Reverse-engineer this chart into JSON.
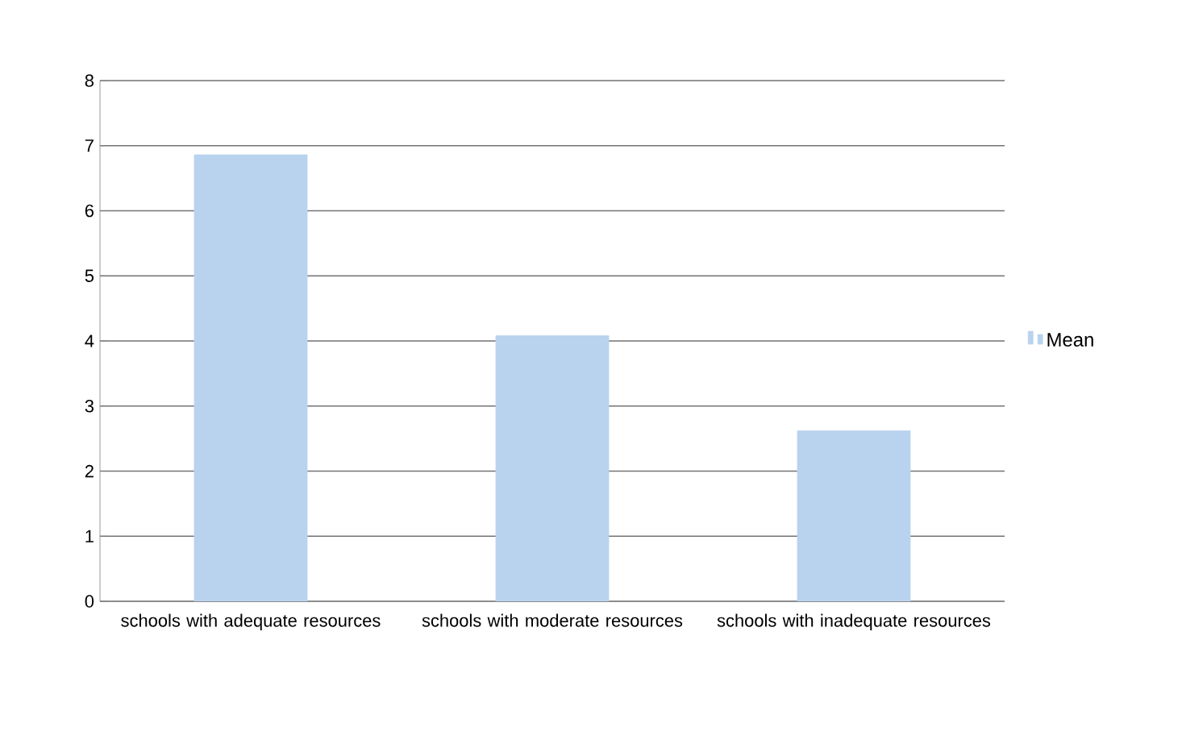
{
  "chart_data": {
    "type": "bar",
    "categories": [
      "schools with adequate resources",
      "schools with moderate resources",
      "schools with inadequate resources"
    ],
    "series": [
      {
        "name": "Mean",
        "color": "#b9d3ee",
        "values": [
          6.86,
          4.08,
          2.62
        ]
      }
    ],
    "ylim": [
      0,
      8
    ],
    "yticks": [
      0,
      1,
      2,
      3,
      4,
      5,
      6,
      7,
      8
    ],
    "grid": "y",
    "legend": "right"
  }
}
